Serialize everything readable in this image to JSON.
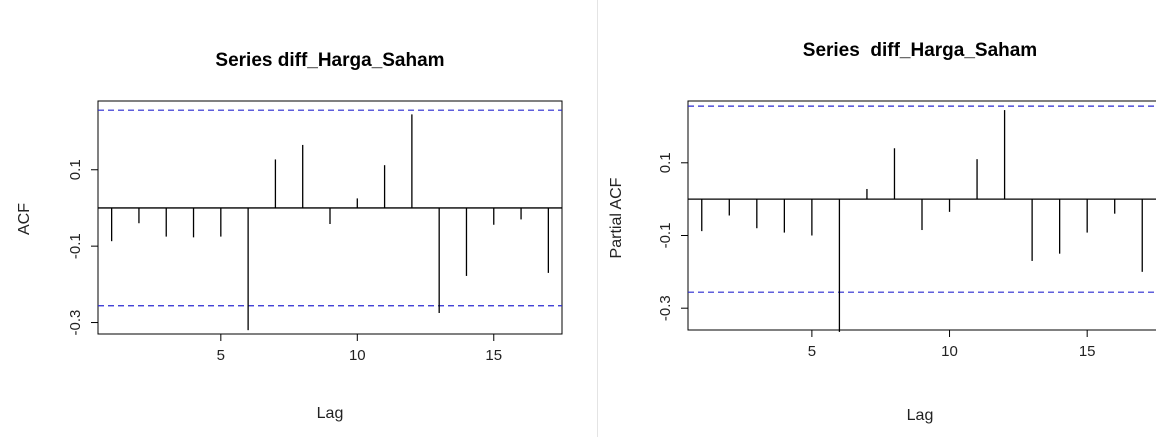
{
  "chart_data": [
    {
      "type": "bar",
      "title": "Series diff_Harga_Saham",
      "xlabel": "Lag",
      "ylabel": "ACF",
      "xlim": [
        0.5,
        17.5
      ],
      "ylim": [
        -0.33,
        0.28
      ],
      "x_ticks": [
        5,
        10,
        15
      ],
      "y_ticks": [
        -0.3,
        -0.1,
        0.1
      ],
      "y_tick_labels": [
        "-0.3",
        "-0.1",
        "0.1"
      ],
      "confidence_band": [
        0.256,
        -0.256
      ],
      "lags": [
        1,
        2,
        3,
        4,
        5,
        6,
        7,
        8,
        9,
        10,
        11,
        12,
        13,
        14,
        15,
        16,
        17
      ],
      "values": [
        -0.087,
        -0.04,
        -0.075,
        -0.077,
        -0.075,
        -0.32,
        0.127,
        0.165,
        -0.042,
        0.025,
        0.112,
        0.245,
        -0.275,
        -0.178,
        -0.044,
        -0.03,
        -0.17
      ]
    },
    {
      "type": "bar",
      "title": "Series  diff_Harga_Saham",
      "xlabel": "Lag",
      "ylabel": "Partial ACF",
      "xlim": [
        0.5,
        17.5
      ],
      "ylim": [
        -0.36,
        0.27
      ],
      "x_ticks": [
        5,
        10,
        15
      ],
      "y_ticks": [
        -0.3,
        -0.1,
        0.1
      ],
      "y_tick_labels": [
        "-0.3",
        "-0.1",
        "0.1"
      ],
      "confidence_band": [
        0.256,
        -0.256
      ],
      "lags": [
        1,
        2,
        3,
        4,
        5,
        6,
        7,
        8,
        9,
        10,
        11,
        12,
        13,
        14,
        15,
        16,
        17
      ],
      "values": [
        -0.088,
        -0.045,
        -0.08,
        -0.092,
        -0.1,
        -0.365,
        0.028,
        0.14,
        -0.085,
        -0.035,
        0.11,
        0.245,
        -0.17,
        -0.15,
        -0.092,
        -0.04,
        -0.2
      ]
    }
  ]
}
